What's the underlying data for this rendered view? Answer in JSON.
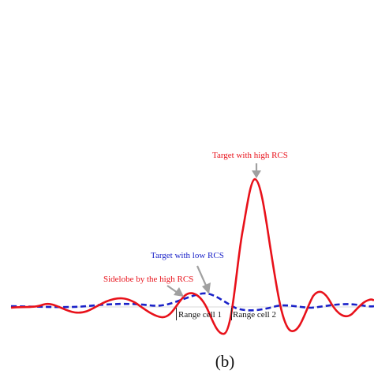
{
  "figure": {
    "caption": "(b)",
    "annotations": {
      "high_target": "Target with high RCS",
      "low_target": "Target with low RCS",
      "sidelobe": "Sidelobe by the high RCS"
    },
    "range_cells": {
      "cell1": "Range cell 1",
      "cell2": "Range cell 2"
    },
    "series": [
      {
        "color": "#e8111a",
        "line_style": "solid"
      },
      {
        "color": "#1a22c8",
        "line_style": "dashed"
      }
    ],
    "arrow_color": "#a0a0a0"
  }
}
